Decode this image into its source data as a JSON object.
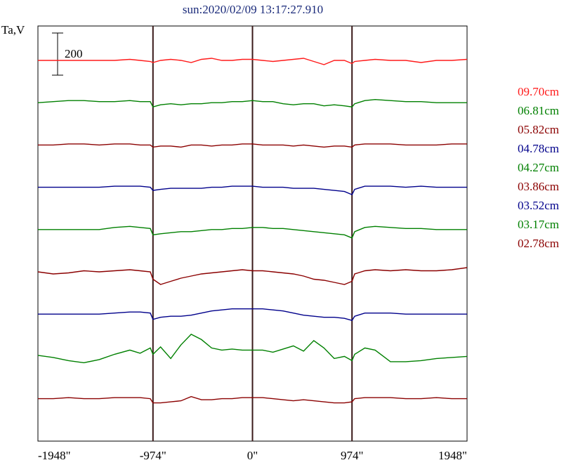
{
  "chart_data": {
    "type": "line",
    "title": "sun:2020/02/09 13:17:27.910",
    "ylabel": "Ta,V",
    "scale_bar_label": "200",
    "xlim": [
      -2100,
      2100
    ],
    "x_ticks": [
      {
        "value": -1948,
        "label": "-1948\""
      },
      {
        "value": -974,
        "label": "-974\""
      },
      {
        "value": 0,
        "label": "0\""
      },
      {
        "value": 974,
        "label": "974\""
      },
      {
        "value": 1948,
        "label": "1948\""
      }
    ],
    "vertical_markers": [
      -974,
      0,
      974
    ],
    "x": [
      -2100,
      -1950,
      -1800,
      -1650,
      -1500,
      -1350,
      -1200,
      -1100,
      -1000,
      -974,
      -900,
      -800,
      -700,
      -600,
      -500,
      -400,
      -300,
      -200,
      -100,
      0,
      100,
      200,
      300,
      400,
      500,
      600,
      700,
      800,
      900,
      974,
      1000,
      1100,
      1200,
      1350,
      1500,
      1650,
      1800,
      1950,
      2100
    ],
    "series": [
      {
        "name": "09.70cm",
        "color": "#ff1a1a",
        "values": [
          0,
          0,
          0,
          0,
          0,
          0,
          5,
          0,
          -5,
          -10,
          0,
          5,
          0,
          -10,
          5,
          10,
          0,
          0,
          5,
          5,
          0,
          -5,
          0,
          5,
          10,
          -5,
          -20,
          0,
          0,
          -15,
          -5,
          0,
          5,
          0,
          0,
          -10,
          0,
          0,
          5
        ]
      },
      {
        "name": "06.81cm",
        "color": "#008000",
        "values": [
          0,
          5,
          10,
          10,
          5,
          5,
          10,
          5,
          5,
          -20,
          -10,
          -5,
          -10,
          -5,
          -5,
          0,
          0,
          5,
          5,
          10,
          5,
          5,
          -5,
          -10,
          -5,
          -5,
          -15,
          -10,
          -15,
          -20,
          -5,
          10,
          15,
          10,
          5,
          5,
          0,
          0,
          0
        ]
      },
      {
        "name": "05.82cm",
        "color": "#8b0000",
        "values": [
          0,
          0,
          5,
          5,
          0,
          5,
          5,
          0,
          0,
          -10,
          -5,
          -5,
          -10,
          0,
          0,
          -5,
          0,
          0,
          5,
          5,
          0,
          0,
          0,
          -5,
          0,
          -5,
          -10,
          -5,
          -5,
          -10,
          0,
          5,
          5,
          5,
          0,
          0,
          0,
          5,
          5
        ]
      },
      {
        "name": "04.78cm",
        "color": "#00008b",
        "values": [
          0,
          0,
          0,
          0,
          0,
          5,
          5,
          5,
          0,
          -15,
          -10,
          -5,
          -5,
          -5,
          -5,
          0,
          0,
          5,
          5,
          5,
          0,
          0,
          0,
          -5,
          -5,
          -5,
          -10,
          -15,
          -20,
          -35,
          -10,
          5,
          5,
          5,
          0,
          5,
          0,
          0,
          0
        ]
      },
      {
        "name": "04.27cm",
        "color": "#008000",
        "values": [
          0,
          0,
          0,
          0,
          0,
          10,
          15,
          10,
          5,
          -25,
          -20,
          -15,
          -10,
          -10,
          -5,
          0,
          0,
          5,
          5,
          10,
          10,
          5,
          5,
          0,
          -5,
          -10,
          -15,
          -20,
          -25,
          -40,
          -10,
          10,
          15,
          10,
          5,
          5,
          0,
          0,
          0
        ]
      },
      {
        "name": "03.86cm",
        "color": "#8b0000",
        "values": [
          0,
          -10,
          -5,
          5,
          0,
          5,
          10,
          5,
          0,
          -35,
          -60,
          -45,
          -30,
          -20,
          -10,
          -5,
          0,
          5,
          10,
          5,
          5,
          0,
          -5,
          -10,
          -20,
          -35,
          -40,
          -50,
          -60,
          -45,
          -10,
          5,
          10,
          5,
          10,
          5,
          5,
          10,
          20
        ]
      },
      {
        "name": "03.52cm",
        "color": "#00008b",
        "values": [
          0,
          0,
          0,
          0,
          0,
          5,
          10,
          10,
          5,
          -25,
          -15,
          -10,
          -10,
          -5,
          5,
          15,
          20,
          25,
          25,
          25,
          25,
          20,
          15,
          5,
          -5,
          -10,
          -15,
          -15,
          -20,
          -30,
          -10,
          5,
          5,
          5,
          0,
          0,
          0,
          0,
          0
        ]
      },
      {
        "name": "03.17cm",
        "color": "#008000",
        "values": [
          5,
          -5,
          -20,
          -30,
          -15,
          10,
          30,
          15,
          40,
          10,
          45,
          -10,
          55,
          105,
          80,
          40,
          30,
          35,
          30,
          30,
          30,
          20,
          35,
          50,
          25,
          75,
          40,
          -10,
          0,
          -20,
          10,
          40,
          30,
          -25,
          -25,
          -20,
          -10,
          -5,
          0
        ]
      },
      {
        "name": "02.78cm",
        "color": "#8b0000",
        "values": [
          0,
          0,
          5,
          0,
          0,
          5,
          5,
          5,
          0,
          -20,
          -20,
          -15,
          -10,
          10,
          -5,
          -5,
          0,
          0,
          5,
          5,
          5,
          0,
          -5,
          -10,
          -5,
          -10,
          -15,
          -20,
          -20,
          -15,
          0,
          5,
          5,
          5,
          0,
          0,
          5,
          0,
          0
        ]
      }
    ]
  }
}
